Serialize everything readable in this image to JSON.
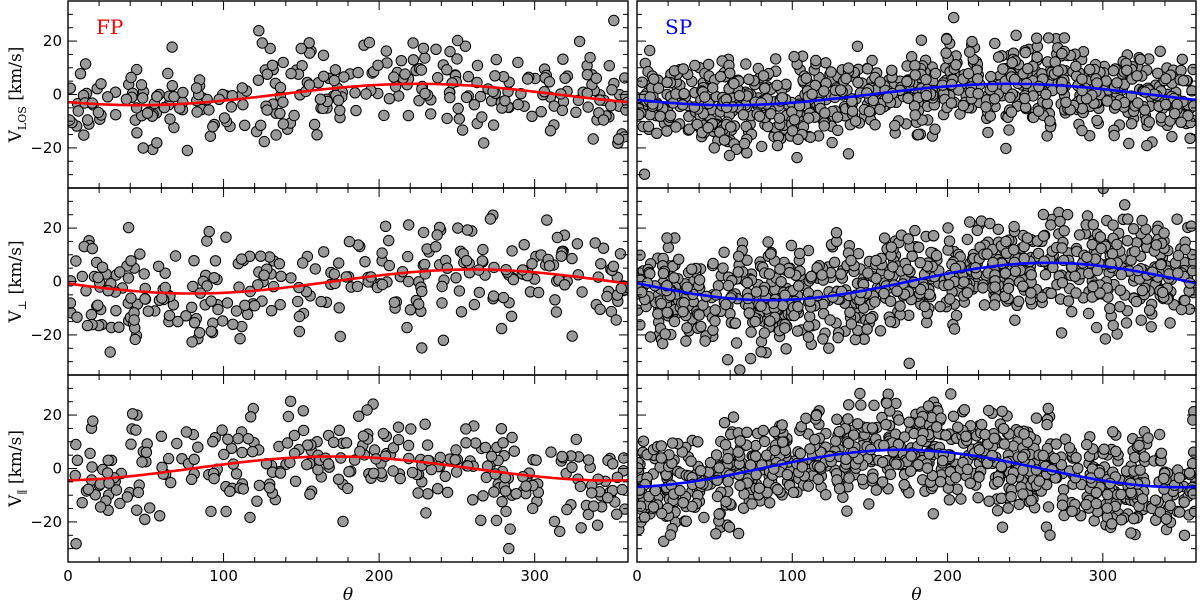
{
  "chart_data": {
    "type": "scatter",
    "xlabel": "θ",
    "xlim": [
      0,
      360
    ],
    "ylim": [
      -35,
      35
    ],
    "xticks": [
      0,
      100,
      200,
      300
    ],
    "yticks": [
      -20,
      0,
      20
    ],
    "columns": [
      {
        "tag": "FP",
        "color": "#ff0000",
        "npoints": 300,
        "seed": 7
      },
      {
        "tag": "SP",
        "color": "#0000ff",
        "npoints": 900,
        "seed": 31
      }
    ],
    "rows": [
      {
        "ylabel": "V_LOS [km/s]",
        "ylabel_main": "V",
        "ylabel_sub": "LOS",
        "ylabel_unit": " [km/s]",
        "scatter_sd": 8,
        "fits": [
          {
            "amplitude": 4,
            "phase_deg": 135
          },
          {
            "amplitude": 4,
            "phase_deg": 150
          }
        ]
      },
      {
        "ylabel": "V_⊥ [km/s]",
        "ylabel_main": "V",
        "ylabel_sub": "⊥",
        "ylabel_unit": " [km/s]",
        "scatter_sd": 9,
        "fits": [
          {
            "amplitude": 4.5,
            "phase_deg": 170
          },
          {
            "amplitude": 7,
            "phase_deg": 175
          }
        ]
      },
      {
        "ylabel": "V_∥ [km/s]",
        "ylabel_main": "V",
        "ylabel_sub": "∥",
        "ylabel_unit": " [km/s]",
        "scatter_sd": 9,
        "fits": [
          {
            "amplitude": 4.5,
            "phase_deg": 80
          },
          {
            "amplitude": 7,
            "phase_deg": 80
          }
        ]
      }
    ]
  }
}
